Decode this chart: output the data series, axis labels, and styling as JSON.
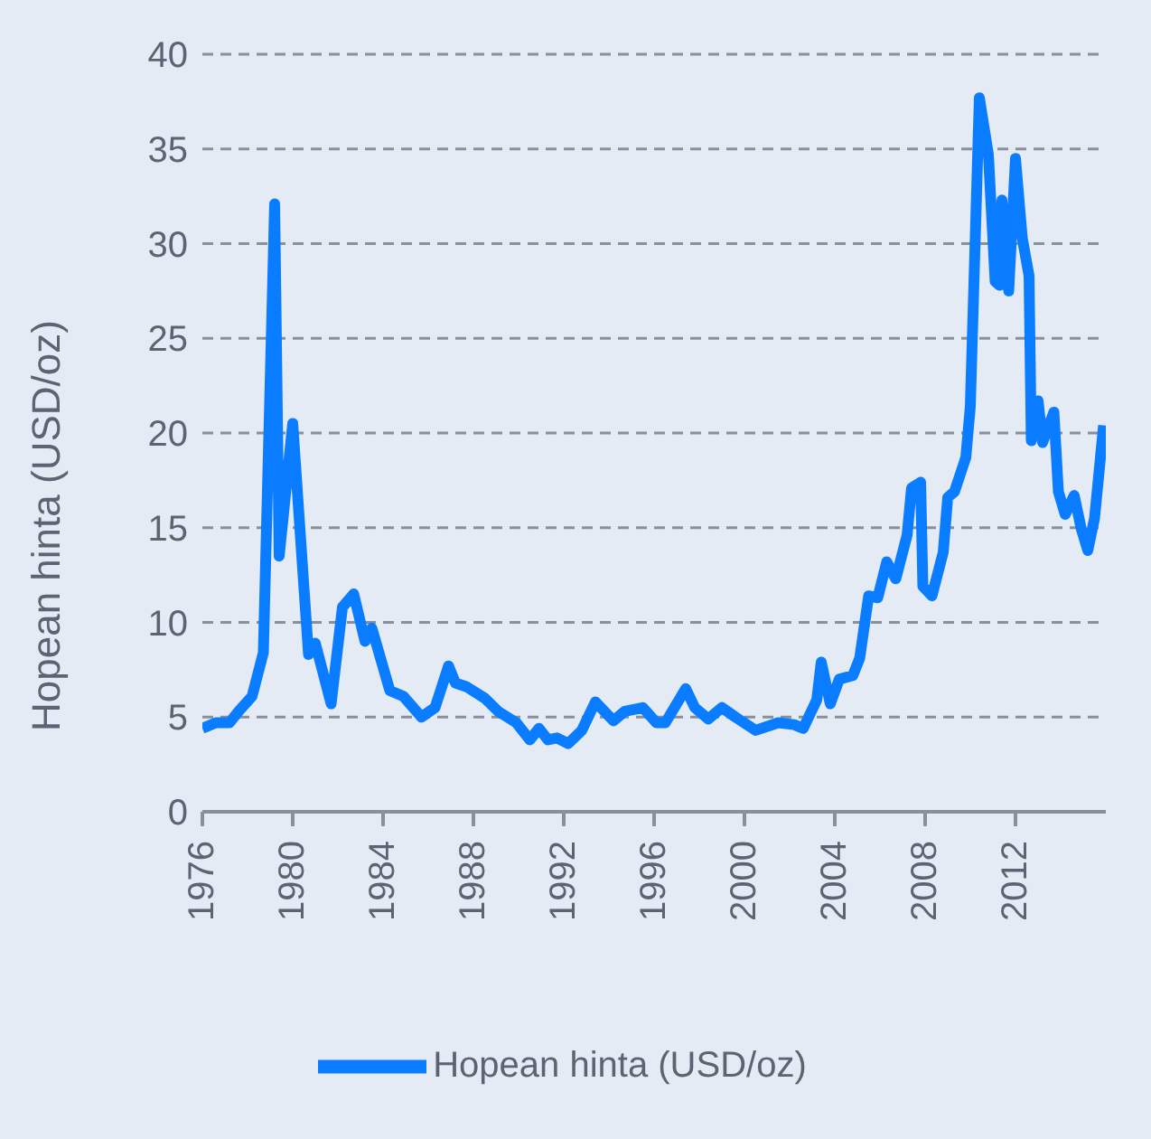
{
  "chart_data": {
    "type": "line",
    "ylabel": "Hopean hinta (USD/oz)",
    "x": [
      1976.0,
      1976.6,
      1977.2,
      1977.6,
      1978.2,
      1978.7,
      1979.2,
      1979.4,
      1980.0,
      1980.7,
      1981.0,
      1981.7,
      1982.2,
      1982.7,
      1983.2,
      1983.5,
      1984.3,
      1984.9,
      1985.7,
      1986.3,
      1986.9,
      1987.2,
      1987.7,
      1988.5,
      1989.1,
      1989.9,
      1990.5,
      1990.9,
      1991.3,
      1991.7,
      1992.2,
      1992.8,
      1993.4,
      1994.2,
      1994.7,
      1995.5,
      1996.1,
      1996.5,
      1997.4,
      1997.8,
      1998.4,
      1999.0,
      1999.6,
      2000.5,
      2001.5,
      2002.2,
      2002.6,
      2003.2,
      2003.4,
      2003.8,
      2004.2,
      2004.8,
      2005.1,
      2005.5,
      2005.9,
      2006.3,
      2006.7,
      2007.2,
      2007.4,
      2007.8,
      2007.9,
      2008.3,
      2008.8,
      2009.0,
      2009.3,
      2009.8,
      2010.0,
      2010.4,
      2010.8,
      2011.1,
      2011.3,
      2011.4,
      2011.7,
      2012.0,
      2012.3,
      2012.6,
      2012.7,
      2013.0,
      2013.2,
      2013.7,
      2013.9,
      2014.2,
      2014.6,
      2014.9,
      2015.2,
      2015.5,
      2015.9
    ],
    "series": [
      {
        "name": "Hopean hinta (USD/oz)",
        "color": "#0a7cff",
        "values": [
          4.4,
          4.7,
          4.7,
          5.3,
          6.1,
          8.4,
          32.1,
          13.5,
          20.5,
          8.3,
          8.9,
          5.7,
          10.8,
          11.5,
          9.0,
          9.7,
          6.4,
          6.1,
          5.0,
          5.5,
          7.7,
          6.8,
          6.6,
          6.0,
          5.3,
          4.7,
          3.8,
          4.4,
          3.8,
          3.9,
          3.6,
          4.3,
          5.8,
          4.8,
          5.3,
          5.5,
          4.7,
          4.7,
          6.5,
          5.5,
          4.9,
          5.5,
          5.0,
          4.3,
          4.7,
          4.6,
          4.4,
          5.9,
          7.9,
          5.7,
          7.0,
          7.2,
          8.1,
          11.4,
          11.3,
          13.2,
          12.3,
          14.6,
          17.1,
          17.4,
          11.9,
          11.4,
          13.7,
          16.6,
          16.9,
          18.7,
          21.4,
          37.7,
          34.7,
          28.0,
          27.8,
          32.3,
          27.5,
          34.5,
          30.3,
          28.3,
          19.6,
          21.7,
          19.5,
          21.1,
          16.9,
          15.7,
          16.7,
          15.0,
          13.8,
          15.5,
          20.4
        ]
      }
    ],
    "xlim": [
      1976,
      2016
    ],
    "xticks": [
      1976,
      1980,
      1984,
      1988,
      1992,
      1996,
      2000,
      2004,
      2008,
      2012
    ],
    "ylim": [
      0,
      40
    ],
    "yticks": [
      0,
      5,
      10,
      15,
      20,
      25,
      30,
      35,
      40
    ],
    "grid": "y",
    "legend": "bottom",
    "line_style": "solid",
    "marker": "none"
  }
}
